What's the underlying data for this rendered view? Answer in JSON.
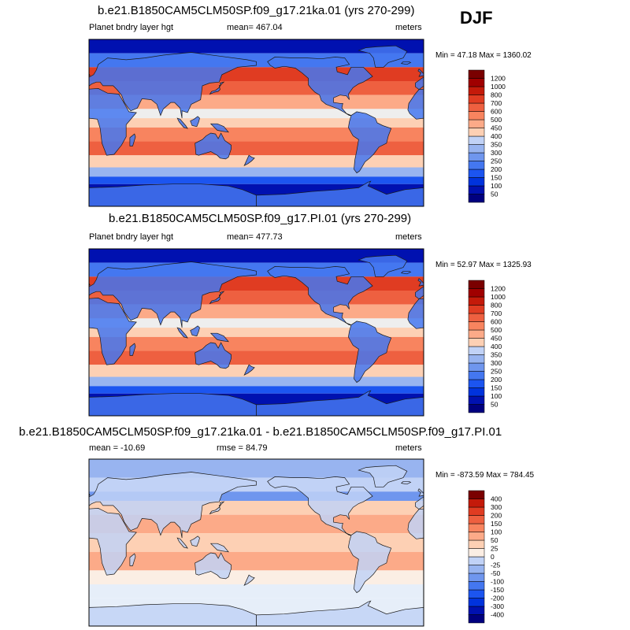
{
  "season": "DJF",
  "colors": {
    "abs_scale": [
      "#00007f",
      "#0011b0",
      "#0033dd",
      "#1c55f0",
      "#4477f0",
      "#6f96ee",
      "#98b4f0",
      "#c1d2f6",
      "#eeeeee",
      "#fdd0b4",
      "#fcaa88",
      "#f8845f",
      "#ee6040",
      "#e03c22",
      "#c41a0a",
      "#a00000",
      "#7a0000"
    ],
    "diff_scale": [
      "#00007f",
      "#0011b0",
      "#0033dd",
      "#1c55f0",
      "#4477f0",
      "#6f96ee",
      "#98b4f0",
      "#c1d2f6",
      "#e6eef9",
      "#fbeee4",
      "#fdd0b4",
      "#fcaa88",
      "#f8845f",
      "#ee6040",
      "#e03c22",
      "#c41a0a",
      "#7a0000"
    ]
  },
  "panels": [
    {
      "title": "b.e21.B1850CAM5CLM50SP.f09_g17.21ka.01 (yrs 270-299)",
      "left_label": "Planet bndry layer hgt",
      "center_label": "mean= 467.04",
      "right_label": "meters",
      "minmax": "Min =  47.18 Max = 1360.02",
      "scale": "abs"
    },
    {
      "title": "b.e21.B1850CAM5CLM50SP.f09_g17.PI.01 (yrs 270-299)",
      "left_label": "Planet bndry layer hgt",
      "center_label": "mean= 477.73",
      "right_label": "meters",
      "minmax": "Min =  52.97 Max = 1325.93",
      "scale": "abs"
    },
    {
      "title": "b.e21.B1850CAM5CLM50SP.f09_g17.21ka.01 - b.e21.B1850CAM5CLM50SP.f09_g17.PI.01",
      "left_label": "mean = -10.69",
      "center_label": "rmse =  84.79",
      "right_label": "meters",
      "minmax": "Min = -873.59 Max = 784.45",
      "scale": "diff"
    }
  ],
  "chart_data": [
    {
      "type": "heatmap",
      "title": "b.e21.B1850CAM5CLM50SP.f09_g17.21ka.01 (yrs 270-299)",
      "variable": "Planet bndry layer hgt",
      "units": "meters",
      "mean": 467.04,
      "min": 47.18,
      "max": 1360.02,
      "colorbar_levels": [
        50,
        100,
        150,
        200,
        250,
        300,
        350,
        400,
        450,
        500,
        600,
        700,
        800,
        1000,
        1200
      ]
    },
    {
      "type": "heatmap",
      "title": "b.e21.B1850CAM5CLM50SP.f09_g17.PI.01 (yrs 270-299)",
      "variable": "Planet bndry layer hgt",
      "units": "meters",
      "mean": 477.73,
      "min": 52.97,
      "max": 1325.93,
      "colorbar_levels": [
        50,
        100,
        150,
        200,
        250,
        300,
        350,
        400,
        450,
        500,
        600,
        700,
        800,
        1000,
        1200
      ]
    },
    {
      "type": "heatmap",
      "title": "b.e21.B1850CAM5CLM50SP.f09_g17.21ka.01 - b.e21.B1850CAM5CLM50SP.f09_g17.PI.01",
      "units": "meters",
      "mean": -10.69,
      "rmse": 84.79,
      "min": -873.59,
      "max": 784.45,
      "colorbar_levels": [
        -400,
        -300,
        -200,
        -150,
        -100,
        -50,
        -25,
        0,
        25,
        50,
        100,
        150,
        200,
        300,
        400
      ]
    }
  ]
}
